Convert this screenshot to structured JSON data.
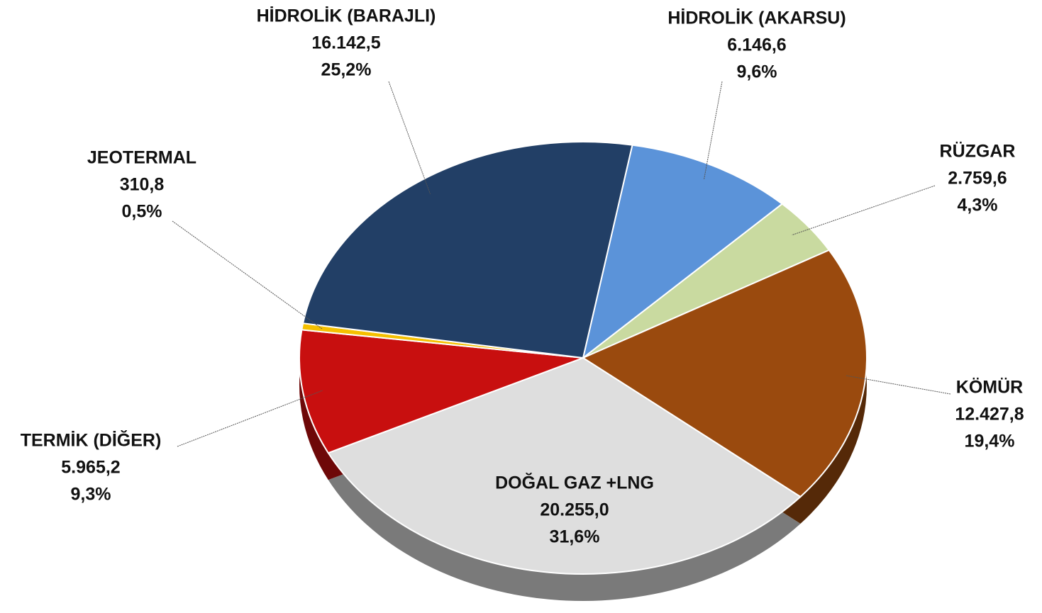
{
  "chart_data": {
    "type": "pie",
    "categories": [
      "HİDROLİK (AKARSU)",
      "RÜZGAR",
      "KÖMÜR",
      "DOĞAL GAZ +LNG",
      "TERMİK (DİĞER)",
      "JEOTERMAL",
      "HİDROLİK (BARAJLI)"
    ],
    "values": [
      6146.6,
      2759.6,
      12427.8,
      20255.0,
      5965.2,
      310.8,
      16142.5
    ],
    "value_labels": [
      "6.146,6",
      "2.759,6",
      "12.427,8",
      "20.255,0",
      "5.965,2",
      "310,8",
      "16.142,5"
    ],
    "shares": [
      9.6,
      4.3,
      19.4,
      31.6,
      9.3,
      0.5,
      25.2
    ],
    "share_labels": [
      "9,6%",
      "4,3%",
      "19,4%",
      "31,6%",
      "9,3%",
      "0,5%",
      "25,2%"
    ],
    "colors": [
      "#5b93d9",
      "#c9daa0",
      "#9a4a0e",
      "#dedede",
      "#c80f0f",
      "#f5c000",
      "#223f66"
    ]
  }
}
